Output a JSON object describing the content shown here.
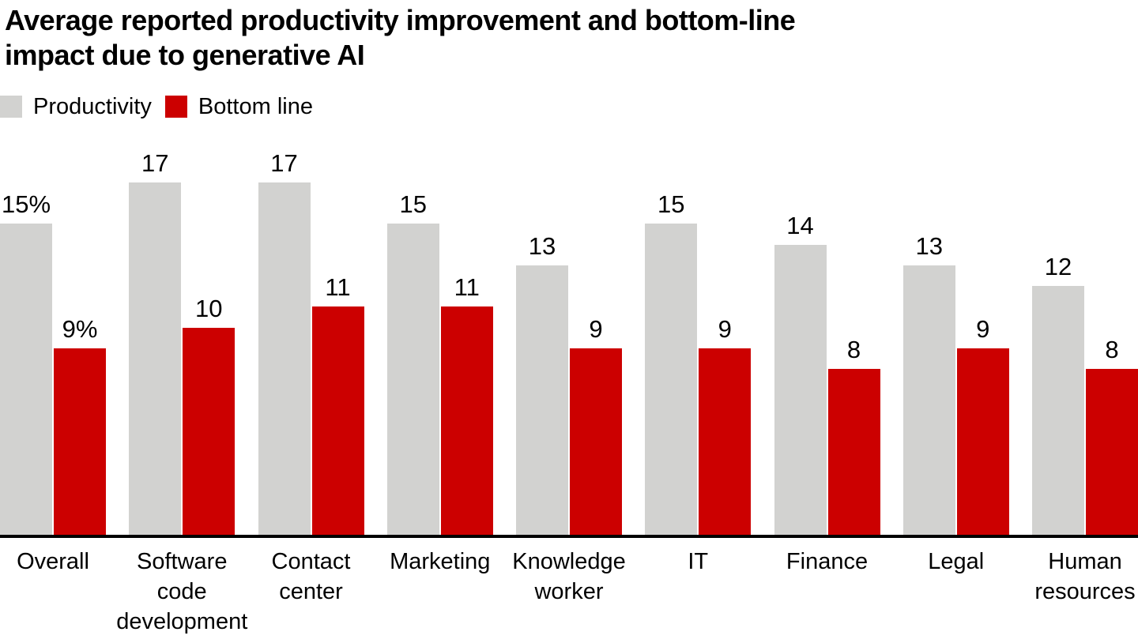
{
  "header": {
    "title_lines": [
      "Average reported productivity improvement and bottom-line",
      "impact due to generative AI"
    ]
  },
  "legend": {
    "items": [
      {
        "label": "Productivity",
        "color": "#d2d2d0"
      },
      {
        "label": "Bottom line",
        "color": "#cc0000"
      }
    ]
  },
  "chart_data": {
    "type": "bar",
    "title": "Average reported productivity improvement and bottom-line impact due to generative AI",
    "unit": "percent",
    "categories": [
      "Overall",
      "Software code development",
      "Contact center",
      "Marketing",
      "Knowledge worker",
      "IT",
      "Finance",
      "Legal",
      "Human resources"
    ],
    "series": [
      {
        "name": "Productivity",
        "color": "#d2d2d0",
        "values": [
          15,
          17,
          17,
          15,
          13,
          15,
          14,
          13,
          12
        ],
        "labels": [
          "15%",
          "17",
          "17",
          "15",
          "13",
          "15",
          "14",
          "13",
          "12"
        ]
      },
      {
        "name": "Bottom line",
        "color": "#cc0000",
        "values": [
          9,
          10,
          11,
          11,
          9,
          9,
          8,
          9,
          8
        ],
        "labels": [
          "9%",
          "10",
          "11",
          "11",
          "9",
          "9",
          "8",
          "9",
          "8"
        ]
      }
    ],
    "ylim": [
      0,
      17
    ],
    "grid": false,
    "y_axis_visible": false,
    "x_axis_line_color": "#000000",
    "data_labels": true,
    "legend_position": "top-left",
    "background": "#ffffff"
  }
}
